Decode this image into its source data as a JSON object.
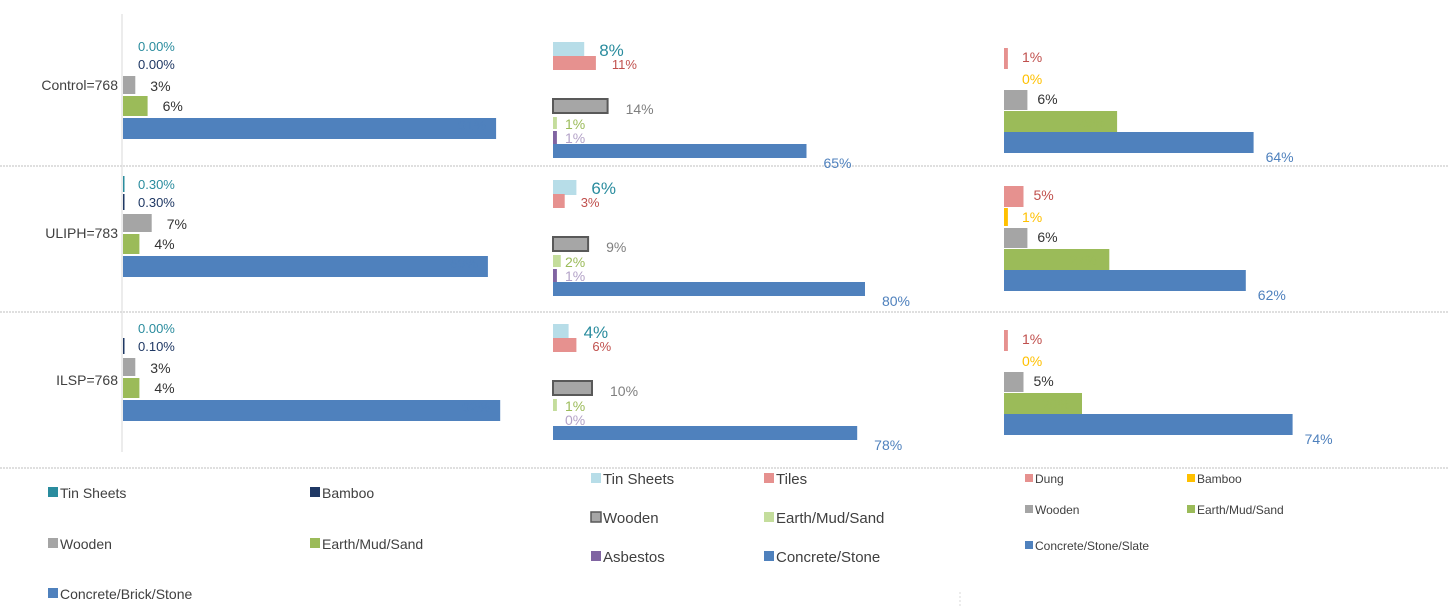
{
  "groups": [
    {
      "label": "Control=768"
    },
    {
      "label": "ULIPH=783"
    },
    {
      "label": "ILSP=768"
    }
  ],
  "colors": {
    "tin_teal": "#2a8c9e",
    "bamboo_navy": "#1f3864",
    "wooden_gray": "#a5a5a5",
    "earth_green": "#9bbb59",
    "concrete_blue": "#4f81bd",
    "tin_light": "#b7dde8",
    "tiles_salmon": "#e6918f",
    "earth_light": "#c4dd9c",
    "asbestos_purple": "#8064a2",
    "bamboo_gold": "#ffc000",
    "asbestos_label": "#b3a2c7",
    "tiles_label": "#c0504d"
  },
  "chart_data": [
    {
      "type": "bar",
      "orientation": "horizontal",
      "categories": [
        "Control=768",
        "ULIPH=783",
        "ILSP=768"
      ],
      "series": [
        {
          "name": "Tin Sheets",
          "values": [
            0.0,
            0.3,
            0.0
          ],
          "labels": [
            "0.00%",
            "0.30%",
            "0.00%"
          ]
        },
        {
          "name": "Bamboo",
          "values": [
            0.0,
            0.3,
            0.1
          ],
          "labels": [
            "0.00%",
            "0.30%",
            "0.10%"
          ]
        },
        {
          "name": "Wooden",
          "values": [
            3,
            7,
            3
          ],
          "labels": [
            "3%",
            "7%",
            "3%"
          ]
        },
        {
          "name": "Earth/Mud/Sand",
          "values": [
            6,
            4,
            4
          ],
          "labels": [
            "6%",
            "4%",
            "4%"
          ]
        },
        {
          "name": "Concrete/Brick/Stone",
          "values": [
            91,
            89,
            92
          ],
          "labels": [
            "91%",
            "89%",
            "92%"
          ]
        }
      ]
    },
    {
      "type": "bar",
      "orientation": "horizontal",
      "categories": [
        "Control=768",
        "ULIPH=783",
        "ILSP=768"
      ],
      "series": [
        {
          "name": "Tin Sheets",
          "values": [
            8,
            6,
            4
          ],
          "labels": [
            "8%",
            "6%",
            "4%"
          ]
        },
        {
          "name": "Tiles",
          "values": [
            11,
            3,
            6
          ],
          "labels": [
            "11%",
            "3%",
            "6%"
          ]
        },
        {
          "name": "Wooden",
          "values": [
            14,
            9,
            10
          ],
          "labels": [
            "14%",
            "9%",
            "10%"
          ]
        },
        {
          "name": "Earth/Mud/Sand",
          "values": [
            1,
            2,
            1
          ],
          "labels": [
            "1%",
            "2%",
            "1%"
          ]
        },
        {
          "name": "Asbestos",
          "values": [
            1,
            1,
            0
          ],
          "labels": [
            "1%",
            "1%",
            "0%"
          ]
        },
        {
          "name": "Concrete/Stone",
          "values": [
            65,
            80,
            78
          ],
          "labels": [
            "65%",
            "80%",
            "78%"
          ]
        }
      ]
    },
    {
      "type": "bar",
      "orientation": "horizontal",
      "categories": [
        "Control=768",
        "ULIPH=783",
        "ILSP=768"
      ],
      "series": [
        {
          "name": "Dung",
          "values": [
            1,
            5,
            1
          ],
          "labels": [
            "1%",
            "5%",
            "1%"
          ]
        },
        {
          "name": "Bamboo",
          "values": [
            0,
            1,
            0
          ],
          "labels": [
            "0%",
            "1%",
            "0%"
          ]
        },
        {
          "name": "Wooden",
          "values": [
            6,
            6,
            5
          ],
          "labels": [
            "6%",
            "6%",
            "5%"
          ]
        },
        {
          "name": "Earth/Mud/Sand",
          "values": [
            29,
            27,
            20
          ],
          "labels": [
            "29%",
            "27%",
            "20%"
          ]
        },
        {
          "name": "Concrete/Stone/Slate",
          "values": [
            64,
            62,
            74
          ],
          "labels": [
            "64%",
            "62%",
            "74%"
          ]
        }
      ]
    }
  ]
}
